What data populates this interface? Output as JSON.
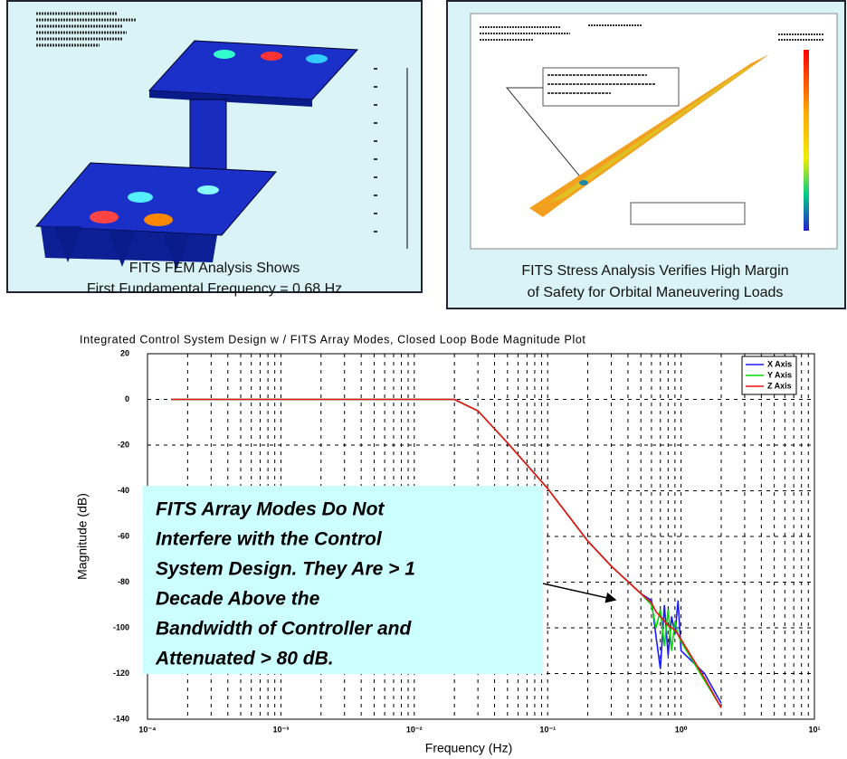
{
  "panels": [
    {
      "caption": [
        "FITS FEM Analysis Shows",
        "First Fundamental Frequency = 0.68 Hz"
      ]
    },
    {
      "caption": [
        "FITS Stress Analysis Verifies High Margin",
        "of Safety for Orbital Maneuvering Loads"
      ]
    }
  ],
  "chart_data": {
    "type": "line",
    "title": "Integrated Control System Design w / FITS Array Modes, Closed Loop Bode Magnitude Plot",
    "x_label": "Frequency (Hz)",
    "y_label": "Magnitude (dB)",
    "xscale": "log",
    "grid": true,
    "legend": "upper right",
    "x": [
      0.00015,
      0.001,
      0.01,
      0.02,
      0.03,
      0.05,
      0.1,
      0.2,
      0.3,
      0.5,
      0.6,
      0.65,
      0.7,
      0.75,
      0.8,
      0.85,
      0.9,
      0.95,
      1,
      1.5,
      2
    ],
    "series": [
      {
        "name": "X Axis",
        "color": "#1a1aff",
        "values": [
          0,
          0,
          0,
          0,
          -5,
          -19,
          -39,
          -62,
          -73,
          -85,
          -88,
          -104,
          -118,
          -90,
          -112,
          -95,
          -103,
          -88,
          -110,
          -120,
          -133
        ]
      },
      {
        "name": "Y Axis",
        "color": "#00dd00",
        "values": [
          0,
          0,
          0,
          0,
          -5,
          -19,
          -39,
          -62,
          -73,
          -85,
          -90,
          -100,
          -92,
          -108,
          -92,
          -110,
          -97,
          -103,
          -106,
          -123,
          -135
        ]
      },
      {
        "name": "Z Axis",
        "color": "#ee1111",
        "values": [
          0,
          0,
          0,
          0,
          -5,
          -19,
          -39,
          -62,
          -73,
          -85,
          -89,
          -93,
          -95,
          -97,
          -99,
          -100,
          -101,
          -103,
          -105,
          -122,
          -135
        ]
      }
    ],
    "xlim": [
      0.0001,
      10
    ],
    "ylim": [
      -140,
      20
    ],
    "xticks": [
      {
        "value": 0.0001,
        "label": "10⁻⁴"
      },
      {
        "value": 0.001,
        "label": "10⁻³"
      },
      {
        "value": 0.01,
        "label": "10⁻²"
      },
      {
        "value": 0.1,
        "label": "10⁻¹"
      },
      {
        "value": 1,
        "label": "10⁰"
      },
      {
        "value": 10,
        "label": "10¹"
      }
    ],
    "xminorticks": [
      0.0002,
      0.0003,
      0.0004,
      0.0005,
      0.0006,
      0.0007,
      0.0008,
      0.0009,
      0.002,
      0.003,
      0.004,
      0.005,
      0.006,
      0.007,
      0.008,
      0.009,
      0.02,
      0.03,
      0.04,
      0.05,
      0.06,
      0.07,
      0.08,
      0.09,
      0.2,
      0.3,
      0.4,
      0.5,
      0.6,
      0.7,
      0.8,
      0.9,
      2,
      3,
      4,
      5,
      6,
      7,
      8,
      9
    ],
    "yticks": [
      20,
      0,
      -20,
      -40,
      -60,
      -80,
      -100,
      -120,
      -140
    ],
    "annotation": [
      "FITS Array Modes Do Not",
      "Interfere with the Control",
      "System Design.  They Are > 1",
      "Decade Above the",
      "Bandwidth of Controller and",
      "Attenuated > 80 dB."
    ]
  }
}
